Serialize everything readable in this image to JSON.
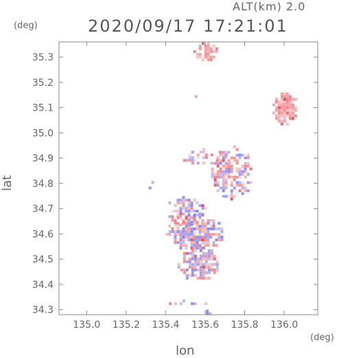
{
  "header": {
    "alt_label": "ALT(km) 2.0",
    "timestamp": "2020/09/17 17:21:01"
  },
  "colors": {
    "frame": "#888888",
    "positive": "#f08080",
    "negative": "#8080f0",
    "strong_positive": "#e04050",
    "neutral": "#d8d8e8"
  },
  "chart_data": {
    "type": "heatmap",
    "title": "2020/09/17 17:21:01",
    "subtitle": "ALT(km) 2.0",
    "xlabel": "lon",
    "ylabel": "lat",
    "x_unit": "(deg)",
    "y_unit": "(deg)",
    "xlim": [
      134.86,
      136.17
    ],
    "ylim": [
      34.28,
      35.36
    ],
    "x_ticks": [
      135.0,
      135.2,
      135.4,
      135.6,
      135.8,
      136.0
    ],
    "x_tick_labels": [
      "135.0",
      "135.2",
      "135.4",
      "135.6",
      "135.8",
      "136.0"
    ],
    "y_ticks": [
      34.3,
      34.4,
      34.5,
      34.6,
      34.7,
      34.8,
      34.9,
      35.0,
      35.1,
      35.2,
      35.3
    ],
    "y_tick_labels": [
      "34.3",
      "34.4",
      "34.5",
      "34.6",
      "34.7",
      "34.8",
      "34.9",
      "35.0",
      "35.1",
      "35.2",
      "35.3"
    ],
    "grid": false,
    "legend": "none",
    "regions": [
      {
        "lon": [
          135.54,
          135.66
        ],
        "lat": [
          35.29,
          35.36
        ],
        "sign": "positive",
        "density": 0.7
      },
      {
        "lon": [
          135.52,
          135.56
        ],
        "lat": [
          35.14,
          35.16
        ],
        "sign": "positive",
        "density": 0.5
      },
      {
        "lon": [
          135.94,
          136.06
        ],
        "lat": [
          35.04,
          35.16
        ],
        "sign": "positive",
        "density": 0.85
      },
      {
        "lon": [
          135.46,
          135.7
        ],
        "lat": [
          34.88,
          34.94
        ],
        "sign": "mixed",
        "density": 0.25
      },
      {
        "lon": [
          135.63,
          135.83
        ],
        "lat": [
          34.74,
          34.95
        ],
        "sign": "mixed",
        "density": 0.55
      },
      {
        "lon": [
          135.4,
          135.6
        ],
        "lat": [
          34.64,
          34.75
        ],
        "sign": "mixed",
        "density": 0.55
      },
      {
        "lon": [
          135.4,
          135.68
        ],
        "lat": [
          34.54,
          34.68
        ],
        "sign": "mixed",
        "density": 0.75
      },
      {
        "lon": [
          135.46,
          135.66
        ],
        "lat": [
          34.42,
          34.55
        ],
        "sign": "mixed",
        "density": 0.7
      },
      {
        "lon": [
          135.36,
          135.7
        ],
        "lat": [
          34.32,
          34.34
        ],
        "sign": "mixed",
        "density": 0.3
      },
      {
        "lon": [
          135.59,
          135.63
        ],
        "lat": [
          34.28,
          34.3
        ],
        "sign": "negative",
        "density": 0.9
      },
      {
        "lon": [
          135.3,
          135.33
        ],
        "lat": [
          34.78,
          34.82
        ],
        "sign": "mixed",
        "density": 0.2
      }
    ]
  }
}
